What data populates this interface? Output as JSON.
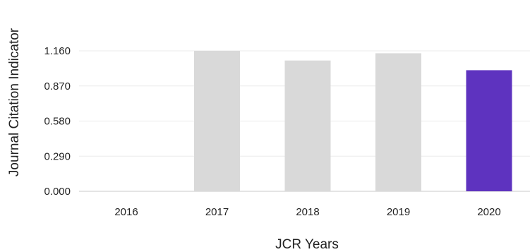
{
  "chart_data": {
    "type": "bar",
    "title": "",
    "xlabel": "JCR Years",
    "ylabel": "Journal Citation Indicator",
    "categories": [
      "2016",
      "2017",
      "2018",
      "2019",
      "2020"
    ],
    "values": [
      null,
      1.16,
      1.08,
      1.14,
      1.0
    ],
    "ylim": [
      0,
      1.16
    ],
    "yticks": [
      0.0,
      0.29,
      0.58,
      0.87,
      1.16
    ],
    "ytick_labels": [
      "0.000",
      "0.290",
      "0.580",
      "0.870",
      "1.160"
    ],
    "grid": true,
    "legend": "none",
    "bar_colors": [
      "#d9d9d9",
      "#d9d9d9",
      "#d9d9d9",
      "#d9d9d9",
      "#5e33bf"
    ]
  },
  "colors": {
    "default_bar": "#d9d9d9",
    "highlight_bar": "#5e33bf",
    "grid": "#ebebeb",
    "baseline": "#c8c8c8",
    "text": "#222222"
  }
}
